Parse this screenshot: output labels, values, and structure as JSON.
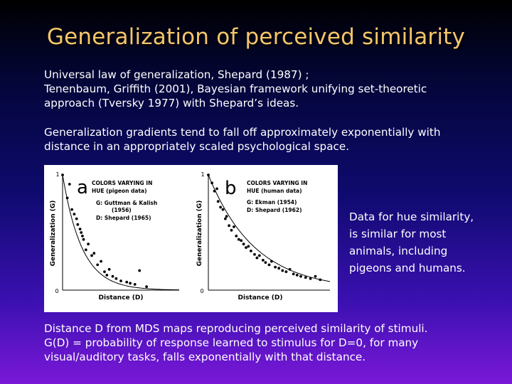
{
  "slide": {
    "title": "Generalization of perceived similarity",
    "p1_line1": "Universal law of generalization, Shepard (1987) ;",
    "p1_line2": "Tenenbaum, Griffith (2001), Bayesian framework unifying set-theoretic",
    "p1_line3": "approach (Tversky 1977) with Shepard’s ideas.",
    "p2_line1": "Generalization gradients tend to fall off approximately exponentially with",
    "p2_line2": "distance in an appropriately scaled psychological space.",
    "side_line1": "Data for hue similarity,",
    "side_line2": "is similar for most",
    "side_line3": "animals, including",
    "side_line4": "pigeons and humans.",
    "p3_line1": "Distance D from MDS maps reproducing perceived similarity of stimuli.",
    "p3_line2": "G(D) = probability of response learned to stimulus for D=0, for many",
    "p3_line3": "visual/auditory tasks, falls exponentially with that distance."
  },
  "figure": {
    "panel_a": {
      "letter": "a",
      "heading1": "COLORS VARYING IN",
      "heading2": "HUE (pigeon data)",
      "legend_g": "G: Guttman & Kalish",
      "legend_g_year": "(1956)",
      "legend_d": "D: Shepard (1965)",
      "ylabel": "Generalization (G)",
      "xlabel": "Distance (D)",
      "y_top": "1",
      "y_bottom": "0"
    },
    "panel_b": {
      "letter": "b",
      "heading1": "COLORS VARYING IN",
      "heading2": "HUE (human data)",
      "legend_g": "G: Ekman (1954)",
      "legend_d": "D: Shepard (1962)",
      "ylabel": "Generalization (G)",
      "xlabel": "Distance (D)",
      "y_top": "1",
      "y_bottom": "0"
    }
  },
  "chart_data": [
    {
      "type": "scatter",
      "ylabel": "Generalization (G)",
      "xlabel": "Distance (D)",
      "ylim": [
        0,
        1
      ],
      "series": [
        {
          "x": [
            0.0,
            0.04,
            0.06,
            0.08,
            0.1,
            0.12,
            0.13,
            0.15,
            0.16,
            0.17,
            0.18,
            0.2,
            0.22,
            0.25,
            0.27,
            0.3,
            0.33,
            0.36,
            0.38,
            0.4,
            0.43,
            0.46,
            0.5,
            0.55,
            0.58,
            0.62,
            0.66,
            0.72
          ],
          "y": [
            1.0,
            0.8,
            0.92,
            0.7,
            0.66,
            0.62,
            0.57,
            0.53,
            0.5,
            0.47,
            0.44,
            0.35,
            0.4,
            0.3,
            0.32,
            0.22,
            0.25,
            0.16,
            0.13,
            0.18,
            0.12,
            0.1,
            0.08,
            0.07,
            0.06,
            0.05,
            0.17,
            0.03
          ]
        }
      ]
    },
    {
      "type": "scatter",
      "ylabel": "Generalization (G)",
      "xlabel": "Distance (D)",
      "ylim": [
        0,
        1
      ],
      "series": [
        {
          "x": [
            0.0,
            0.03,
            0.05,
            0.07,
            0.08,
            0.1,
            0.12,
            0.14,
            0.15,
            0.17,
            0.19,
            0.21,
            0.23,
            0.25,
            0.27,
            0.29,
            0.31,
            0.33,
            0.35,
            0.38,
            0.4,
            0.42,
            0.45,
            0.47,
            0.5,
            0.52,
            0.55,
            0.58,
            0.61,
            0.64,
            0.67,
            0.7,
            0.73,
            0.76,
            0.8,
            0.84,
            0.88,
            0.92
          ],
          "y": [
            1.0,
            0.93,
            0.86,
            0.88,
            0.77,
            0.72,
            0.7,
            0.62,
            0.64,
            0.56,
            0.52,
            0.55,
            0.47,
            0.44,
            0.43,
            0.4,
            0.37,
            0.38,
            0.34,
            0.31,
            0.28,
            0.3,
            0.26,
            0.24,
            0.22,
            0.25,
            0.2,
            0.19,
            0.17,
            0.16,
            0.18,
            0.14,
            0.13,
            0.12,
            0.11,
            0.1,
            0.12,
            0.09
          ]
        }
      ]
    }
  ]
}
